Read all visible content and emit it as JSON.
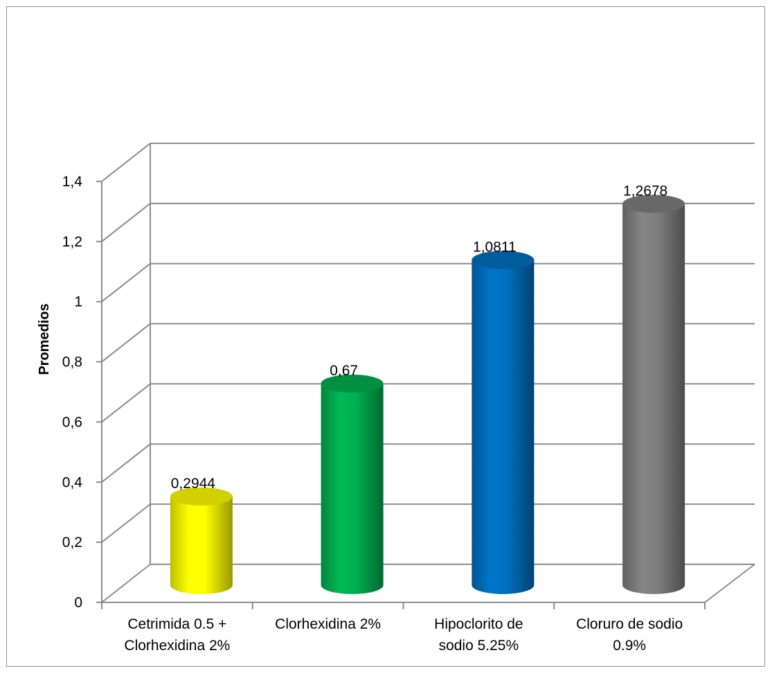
{
  "chart_data": {
    "type": "bar",
    "style": "3d-cylinder",
    "title": "",
    "xlabel": "",
    "ylabel": "Promedios",
    "ylim": [
      0,
      1.4
    ],
    "yticks": [
      "0",
      "0,2",
      "0,4",
      "0,6",
      "0,8",
      "1",
      "1,2",
      "1,4"
    ],
    "grid": true,
    "legend": "none",
    "categories": [
      [
        "Cetrimida 0.5 +",
        "Clorhexidina 2%"
      ],
      [
        "Clorhexidina 2%"
      ],
      [
        "Hipoclorito de",
        "sodio 5.25%"
      ],
      [
        "Cloruro de sodio",
        "0.9%"
      ]
    ],
    "values": [
      0.2944,
      0.67,
      1.0811,
      1.2678
    ],
    "value_labels": [
      "0,2944",
      "0,67",
      "1,0811",
      "1,2678"
    ],
    "colors": [
      "#ffff00",
      "#00b050",
      "#0070c0",
      "#7f7f7f"
    ]
  }
}
